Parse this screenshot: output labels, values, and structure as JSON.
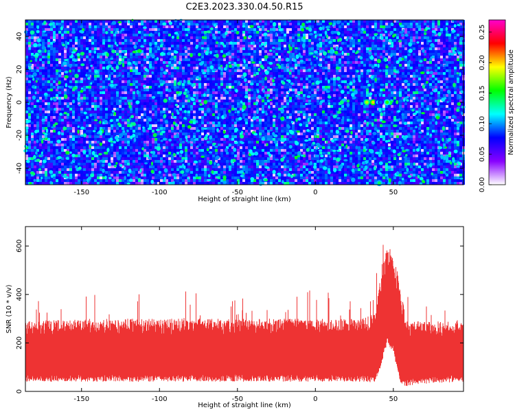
{
  "title": "C2E3.2023.330.04.50.R15",
  "chart_data": [
    {
      "type": "heatmap",
      "xlabel": "Height of straight line (km)",
      "ylabel": "Frequency (Hz)",
      "xlim": [
        -186,
        95
      ],
      "ylim": [
        -50,
        50
      ],
      "xticks": [
        -150,
        -100,
        -50,
        0,
        50
      ],
      "yticks": [
        -40,
        -20,
        0,
        20,
        40
      ],
      "colorbar": {
        "label": "Normalized spectral amplitude",
        "range": [
          0,
          0.27
        ],
        "ticks": [
          "0.00",
          "0.05",
          "0.10",
          "0.15",
          "0.20",
          "0.25"
        ],
        "colors": [
          "#ffffff",
          "#8800ff",
          "#0000ff",
          "#00ffff",
          "#00ff00",
          "#ffff00",
          "#ff0000",
          "#ff00cc"
        ]
      },
      "background_level": 0.02,
      "hotspots": [
        {
          "x": 33,
          "y": 0,
          "value": 0.18
        },
        {
          "x": 37,
          "y": 0,
          "value": 0.2
        },
        {
          "x": 40,
          "y": 0,
          "value": 0.11
        },
        {
          "x": 46,
          "y": 0,
          "value": 0.16
        },
        {
          "x": 42,
          "y": 0,
          "value": 0.09
        },
        {
          "x": 41,
          "y": -49,
          "value": 0.14
        }
      ]
    },
    {
      "type": "area",
      "xlabel": "Height of straight line (km)",
      "ylabel": "SNR (10 * v/v)",
      "xlim": [
        -186,
        95
      ],
      "ylim": [
        0,
        680
      ],
      "xticks": [
        -150,
        -100,
        -50,
        0,
        50
      ],
      "yticks": [
        0,
        200,
        400,
        600
      ],
      "color": "#ee3333",
      "envelope": {
        "x": [
          -186,
          -150,
          -100,
          -50,
          0,
          30,
          38,
          42,
          46,
          50,
          54,
          58,
          65,
          95
        ],
        "min": [
          40,
          40,
          40,
          40,
          40,
          40,
          35,
          100,
          200,
          160,
          40,
          20,
          30,
          40
        ],
        "typ_max": [
          290,
          300,
          300,
          300,
          300,
          300,
          320,
          480,
          600,
          580,
          450,
          300,
          290,
          290
        ],
        "peak_max": [
          360,
          420,
          420,
          420,
          420,
          420,
          440,
          600,
          670,
          680,
          560,
          400,
          360,
          360
        ]
      }
    }
  ]
}
